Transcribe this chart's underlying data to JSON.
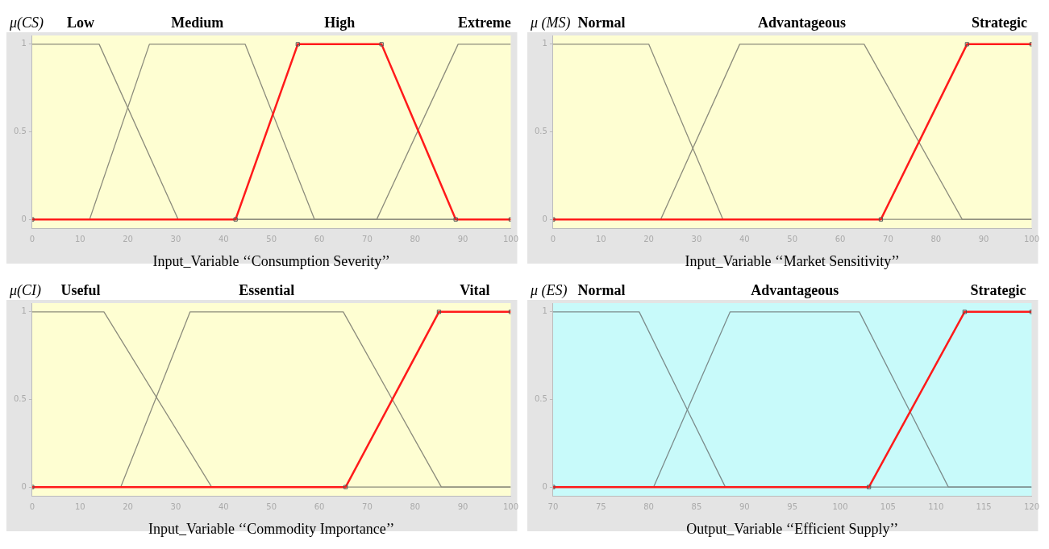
{
  "chart_data": [
    {
      "type": "line",
      "ylabel": "μ(CS)",
      "xlabel": "Input_Variable ‘‘Consumption Severity’’",
      "xlim": [
        0,
        100
      ],
      "xticks": [
        0,
        10,
        20,
        30,
        40,
        50,
        60,
        70,
        80,
        90,
        100
      ],
      "ylim": [
        -0.05,
        1.05
      ],
      "yticks": [
        0,
        0.5,
        1
      ],
      "grid": false,
      "legend": false,
      "series": [
        {
          "name": "Low",
          "color": "#8c8c7c",
          "x": [
            0,
            14,
            30.5,
            100
          ],
          "values": [
            1,
            1,
            0,
            0
          ]
        },
        {
          "name": "Medium",
          "color": "#8c8c7c",
          "x": [
            0,
            12,
            24.5,
            44.5,
            59,
            100
          ],
          "values": [
            0,
            0,
            1,
            1,
            0,
            0
          ]
        },
        {
          "name": "High",
          "color": "#ff1a1a",
          "marker": "square",
          "x": [
            0,
            42.5,
            55.5,
            73,
            88.5,
            100
          ],
          "values": [
            0,
            0,
            1,
            1,
            0,
            0
          ]
        },
        {
          "name": "Extreme",
          "color": "#8c8c7c",
          "x": [
            0,
            72,
            89,
            100
          ],
          "values": [
            0,
            0,
            1,
            1
          ]
        }
      ]
    },
    {
      "type": "line",
      "ylabel": "μ (MS)",
      "xlabel": "Input_Variable ‘‘Market Sensitivity’’",
      "xlim": [
        0,
        100
      ],
      "xticks": [
        0,
        10,
        20,
        30,
        40,
        50,
        60,
        70,
        80,
        90,
        100
      ],
      "ylim": [
        -0.05,
        1.05
      ],
      "yticks": [
        0,
        0.5,
        1
      ],
      "grid": false,
      "legend": false,
      "series": [
        {
          "name": "Normal",
          "color": "#8c8c7c",
          "x": [
            0,
            20,
            35.5,
            100
          ],
          "values": [
            1,
            1,
            0,
            0
          ]
        },
        {
          "name": "Advantageous",
          "color": "#8c8c7c",
          "x": [
            0,
            22.5,
            39,
            65,
            85.5,
            100
          ],
          "values": [
            0,
            0,
            1,
            1,
            0,
            0
          ]
        },
        {
          "name": "Strategic",
          "color": "#ff1a1a",
          "marker": "square",
          "x": [
            0,
            68.5,
            86.5,
            100
          ],
          "values": [
            0,
            0,
            1,
            1
          ]
        }
      ]
    },
    {
      "type": "line",
      "ylabel": "μ(CI)",
      "xlabel": "Input_Variable ‘‘Commodity Importance’’",
      "xlim": [
        0,
        100
      ],
      "xticks": [
        0,
        10,
        20,
        30,
        40,
        50,
        60,
        70,
        80,
        90,
        100
      ],
      "ylim": [
        -0.05,
        1.05
      ],
      "yticks": [
        0,
        0.5,
        1
      ],
      "grid": false,
      "legend": false,
      "series": [
        {
          "name": "Useful",
          "color": "#8c8c7c",
          "x": [
            0,
            15,
            37.5,
            100
          ],
          "values": [
            1,
            1,
            0,
            0
          ]
        },
        {
          "name": "Essential",
          "color": "#8c8c7c",
          "x": [
            0,
            18.5,
            33,
            65,
            85.5,
            100
          ],
          "values": [
            0,
            0,
            1,
            1,
            0,
            0
          ]
        },
        {
          "name": "Vital",
          "color": "#ff1a1a",
          "marker": "square",
          "x": [
            0,
            65.5,
            85,
            100
          ],
          "values": [
            0,
            0,
            1,
            1
          ]
        }
      ]
    },
    {
      "type": "line",
      "ylabel": "μ (ES)",
      "xlabel": "Output_Variable ‘‘Efficient Supply’’",
      "xlim": [
        70,
        120
      ],
      "xticks": [
        70,
        75,
        80,
        85,
        90,
        95,
        100,
        105,
        110,
        115,
        120
      ],
      "ylim": [
        -0.05,
        1.05
      ],
      "yticks": [
        0,
        0.5,
        1
      ],
      "grid": false,
      "legend": false,
      "series": [
        {
          "name": "Normal",
          "color": "#7c8c8c",
          "x": [
            70,
            79,
            88,
            120
          ],
          "values": [
            1,
            1,
            0,
            0
          ]
        },
        {
          "name": "Advantageous",
          "color": "#7c8c8c",
          "x": [
            70,
            80.5,
            88.5,
            102,
            111.3,
            120
          ],
          "values": [
            0,
            0,
            1,
            1,
            0,
            0
          ]
        },
        {
          "name": "Strategic",
          "color": "#ff1a1a",
          "marker": "square",
          "x": [
            70,
            103,
            113,
            120
          ],
          "values": [
            0,
            0,
            1,
            1
          ]
        }
      ]
    }
  ]
}
